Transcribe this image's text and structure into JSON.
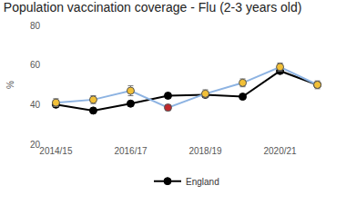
{
  "chart_data": {
    "type": "line",
    "title": "Population vaccination coverage - Flu (2-3 years old)",
    "y_label": "%",
    "categories": [
      "2014/15",
      null,
      "2016/17",
      null,
      "2018/19",
      null,
      "2020/21",
      null
    ],
    "series": [
      {
        "name": "England",
        "color": "#000000",
        "marker": "circle",
        "values": [
          40,
          37,
          40.5,
          44.5,
          45,
          44,
          57,
          50
        ]
      },
      {
        "color": "#8db3e2",
        "marker": "circle",
        "colors": [
          "#f2c037",
          "#f2c037",
          "#f2c037",
          "#c0272d",
          "#f2c037",
          "#f2c037",
          "#f2c037",
          "#f2c037"
        ],
        "values": [
          41,
          42.5,
          47,
          38.5,
          45.5,
          51,
          59,
          50
        ],
        "error": [
          2,
          2,
          2.5,
          1.5,
          2,
          2,
          2,
          2
        ]
      }
    ],
    "ylim": [
      20,
      80
    ],
    "yticks": [
      20,
      40,
      60,
      80
    ],
    "grid": false,
    "legend": "bottom"
  }
}
